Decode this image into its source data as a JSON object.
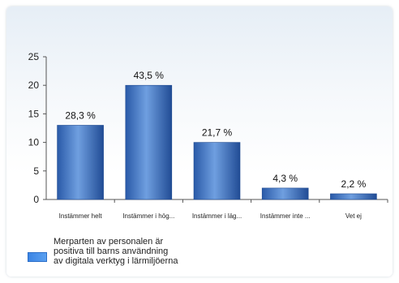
{
  "chart_data": {
    "type": "bar",
    "categories": [
      "Instämmer helt",
      "Instämmer i hög...",
      "Instämmer i läg...",
      "Instämmer inte ...",
      "Vet ej"
    ],
    "series": [
      {
        "name": "Merparten av personalen är\npositiva till barns användning\nav digitala verktyg i lärmiljöerna",
        "values": [
          13,
          20,
          10,
          2,
          1
        ],
        "labels": [
          "28,3 %",
          "43,5 %",
          "21,7 %",
          "4,3 %",
          "2,2 %"
        ]
      }
    ],
    "yticks": [
      "0",
      "5",
      "10",
      "15",
      "20",
      "25"
    ],
    "ylim": [
      0,
      25
    ],
    "title": "",
    "xlabel": "",
    "ylabel": "",
    "legend_position": "bottom-left",
    "grid": false,
    "bar_color_top": "#5e93d8",
    "bar_color_bottom": "#2a5aa8"
  }
}
